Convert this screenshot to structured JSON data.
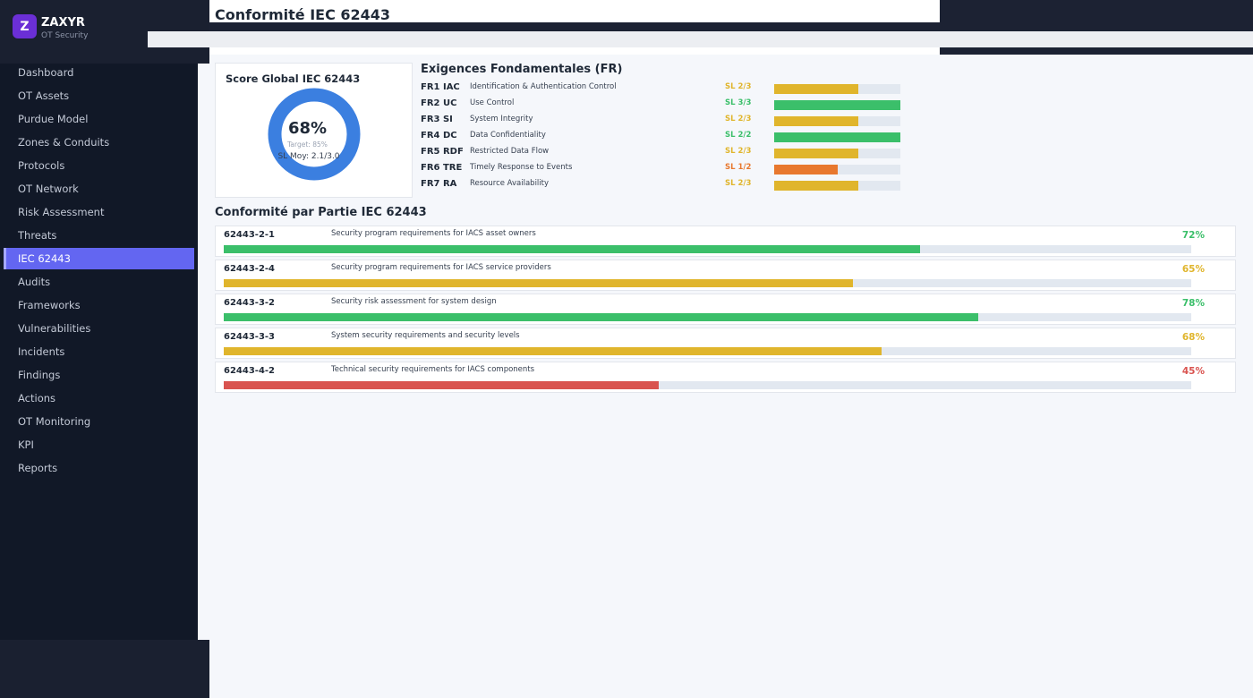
{
  "sidebar": {
    "logo_letter": "Z",
    "brand": "ZAXYR",
    "subtitle": "OT Security",
    "active_item": 8,
    "nav": [
      "Dashboard",
      "OT Assets",
      "Purdue Model",
      "Zones & Conduits",
      "Protocols",
      "OT Network",
      "Risk Assessment",
      "Threats",
      "IEC 62443",
      "Audits",
      "Frameworks",
      "Vulnerabilities",
      "Incidents",
      "Findings",
      "Actions",
      "OT Monitoring",
      "KPI",
      "Reports"
    ]
  },
  "header": {
    "title": "Conformité IEC 62443"
  },
  "score_card": {
    "title": "Score Global IEC 62443",
    "score": "68%",
    "target": "Target: 85%",
    "sl_average": "SL Moy: 2.1/3.0",
    "ring_color": "#3b7fe0"
  },
  "fundamental_requirements": {
    "title": "Exigences Fondamentales (FR)",
    "rows": [
      {
        "code": "FR1 IAC",
        "name": "Identification & Authentication Control",
        "sl_label": "SL 2/3",
        "level": 2,
        "target": 3,
        "color": "#e0b52c"
      },
      {
        "code": "FR2 UC",
        "name": "Use Control",
        "sl_label": "SL 3/3",
        "level": 3,
        "target": 3,
        "color": "#3bbf6a"
      },
      {
        "code": "FR3 SI",
        "name": "System Integrity",
        "sl_label": "SL 2/3",
        "level": 2,
        "target": 3,
        "color": "#e0b52c"
      },
      {
        "code": "FR4 DC",
        "name": "Data Confidentiality",
        "sl_label": "SL 2/2",
        "level": 2,
        "target": 2,
        "color": "#3bbf6a"
      },
      {
        "code": "FR5 RDF",
        "name": "Restricted Data Flow",
        "sl_label": "SL 2/3",
        "level": 2,
        "target": 3,
        "color": "#e0b52c"
      },
      {
        "code": "FR6 TRE",
        "name": "Timely Response to Events",
        "sl_label": "SL 1/2",
        "level": 1,
        "target": 2,
        "color": "#e8782e"
      },
      {
        "code": "FR7 RA",
        "name": "Resource Availability",
        "sl_label": "SL 2/3",
        "level": 2,
        "target": 3,
        "color": "#e0b52c"
      }
    ]
  },
  "parts": {
    "title": "Conformité par Partie IEC 62443",
    "rows": [
      {
        "id": "62443-2-1",
        "description": "Security program requirements for IACS asset owners",
        "percent": {
          "value": 72,
          "label": "72%"
        },
        "color": "#3bbf6a"
      },
      {
        "id": "62443-2-4",
        "description": "Security program requirements for IACS service providers",
        "percent": {
          "value": 65,
          "label": "65%"
        },
        "color": "#e0b52c"
      },
      {
        "id": "62443-3-2",
        "description": "Security risk assessment for system design",
        "percent": {
          "value": 78,
          "label": "78%"
        },
        "color": "#3bbf6a"
      },
      {
        "id": "62443-3-3",
        "description": "System security requirements and security levels",
        "percent": {
          "value": 68,
          "label": "68%"
        },
        "color": "#e0b52c"
      },
      {
        "id": "62443-4-2",
        "description": "Technical security requirements for IACS components",
        "percent": {
          "value": 45,
          "label": "45%"
        },
        "color": "#d9534f"
      }
    ]
  }
}
